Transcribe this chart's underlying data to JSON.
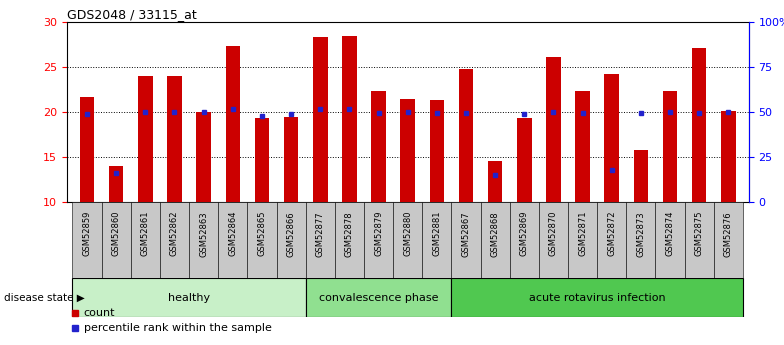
{
  "title": "GDS2048 / 33115_at",
  "samples": [
    "GSM52859",
    "GSM52860",
    "GSM52861",
    "GSM52862",
    "GSM52863",
    "GSM52864",
    "GSM52865",
    "GSM52866",
    "GSM52877",
    "GSM52878",
    "GSM52879",
    "GSM52880",
    "GSM52881",
    "GSM52867",
    "GSM52868",
    "GSM52869",
    "GSM52870",
    "GSM52871",
    "GSM52872",
    "GSM52873",
    "GSM52874",
    "GSM52875",
    "GSM52876"
  ],
  "count_values": [
    21.7,
    14.0,
    24.0,
    24.0,
    20.0,
    27.4,
    19.3,
    19.5,
    28.4,
    28.5,
    22.3,
    21.5,
    21.3,
    24.8,
    14.6,
    19.3,
    26.2,
    22.3,
    24.3,
    15.8,
    22.3,
    27.1,
    20.1
  ],
  "percentile_values": [
    49.0,
    16.0,
    50.0,
    50.0,
    50.0,
    52.0,
    48.0,
    49.0,
    52.0,
    52.0,
    49.5,
    50.0,
    49.5,
    49.5,
    15.0,
    49.0,
    50.0,
    49.5,
    18.0,
    49.5,
    50.0,
    49.5,
    50.0
  ],
  "groups": [
    {
      "label": "healthy",
      "start": 0,
      "end": 8,
      "color": "#c8f0c8"
    },
    {
      "label": "convalescence phase",
      "start": 8,
      "end": 13,
      "color": "#90e090"
    },
    {
      "label": "acute rotavirus infection",
      "start": 13,
      "end": 23,
      "color": "#50c850"
    }
  ],
  "bar_color": "#cc0000",
  "dot_color": "#2222cc",
  "ymin": 10,
  "ymax": 30,
  "yticks": [
    10,
    15,
    20,
    25,
    30
  ],
  "y2ticks_pct": [
    0,
    25,
    50,
    75,
    100
  ],
  "y2labels": [
    "0",
    "25",
    "50",
    "75",
    "100%"
  ],
  "plot_bg": "#ffffff",
  "tick_bg": "#c8c8c8",
  "grid_color": "#000000"
}
